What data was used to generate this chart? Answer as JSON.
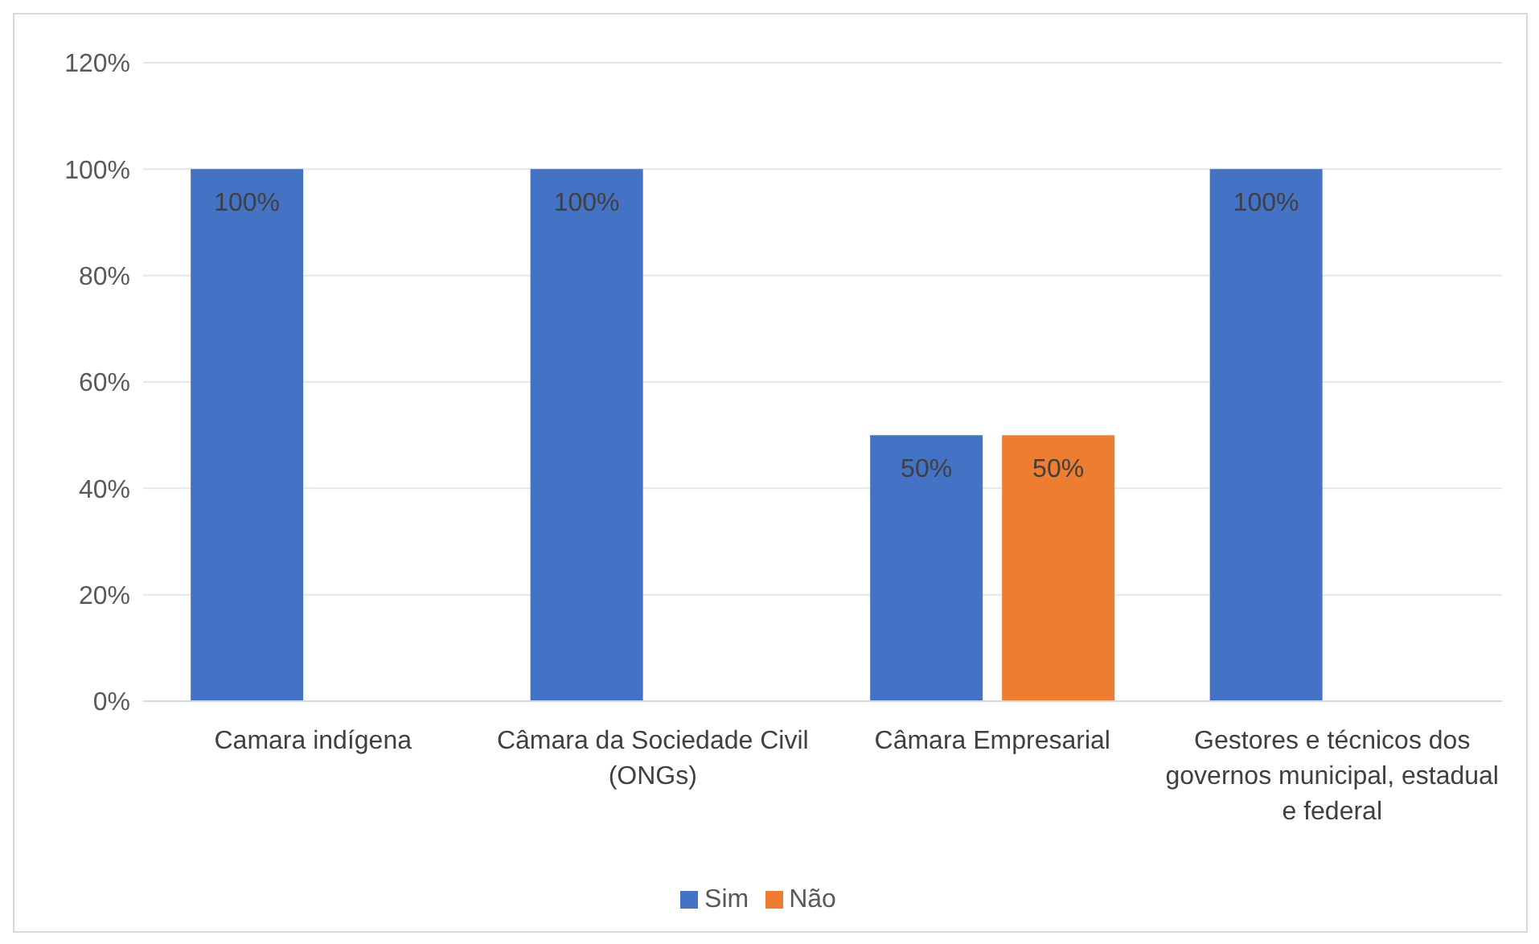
{
  "chart_data": {
    "type": "bar",
    "categories": [
      "Camara indígena",
      "Câmara da Sociedade Civil (ONGs)",
      "Câmara Empresarial",
      "Gestores e técnicos dos governos municipal, estadual e federal"
    ],
    "series": [
      {
        "name": "Sim",
        "color": "#4472c4",
        "values": [
          100,
          100,
          50,
          100
        ],
        "value_labels": [
          "100%",
          "100%",
          "50%",
          "100%"
        ]
      },
      {
        "name": "Não",
        "color": "#ed7d31",
        "values": [
          null,
          null,
          50,
          null
        ],
        "value_labels": [
          null,
          null,
          "50%",
          null
        ]
      }
    ],
    "ylim": [
      0,
      120
    ],
    "yticks": [
      {
        "value": 0,
        "label": "0%"
      },
      {
        "value": 20,
        "label": "20%"
      },
      {
        "value": 40,
        "label": "40%"
      },
      {
        "value": 60,
        "label": "60%"
      },
      {
        "value": 80,
        "label": "80%"
      },
      {
        "value": 100,
        "label": "100%"
      },
      {
        "value": 120,
        "label": "120%"
      }
    ],
    "grid": "y",
    "legend": "bottom"
  }
}
